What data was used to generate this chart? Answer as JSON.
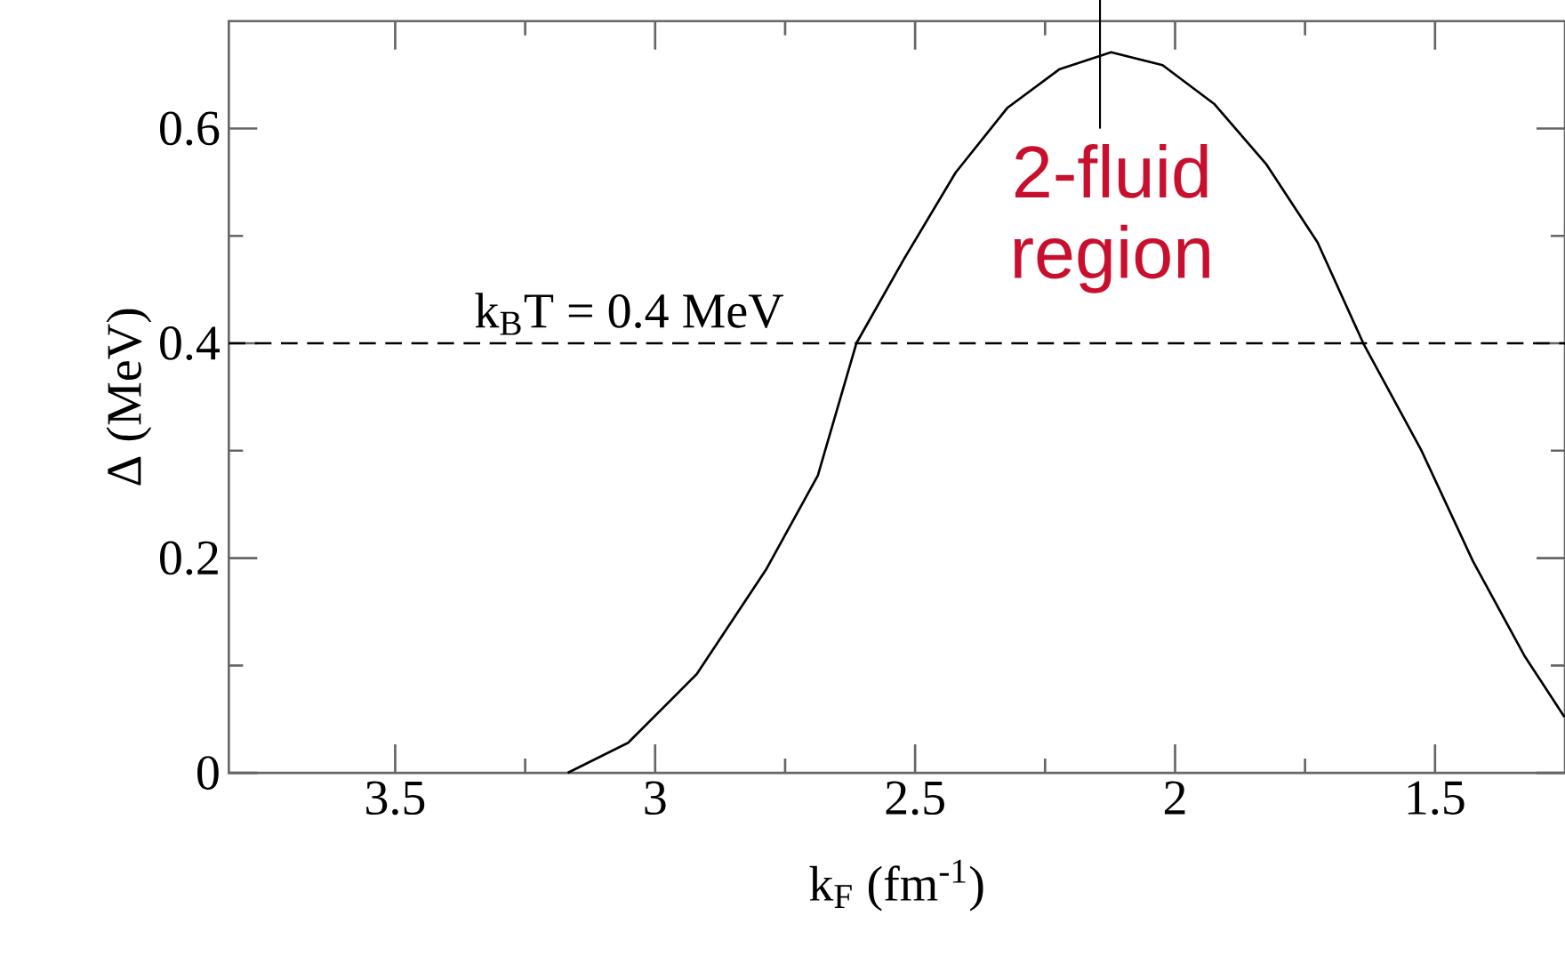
{
  "chart_data": {
    "type": "line",
    "xlabel": "k$_{F}$ (fm$^{-1}$)",
    "ylabel": "Δ (MeV)",
    "x": [
      3.168,
      3.052,
      2.92,
      2.787,
      2.687,
      2.613,
      2.522,
      2.422,
      2.323,
      2.223,
      2.123,
      2.024,
      1.925,
      1.825,
      1.726,
      1.638,
      1.527,
      1.427,
      1.328,
      1.251
    ],
    "series": [
      {
        "color": "#000000",
        "values": [
          0,
          0.028,
          0.092,
          0.189,
          0.277,
          0.4,
          0.478,
          0.559,
          0.619,
          0.655,
          0.671,
          0.659,
          0.623,
          0.567,
          0.494,
          0.4,
          0.301,
          0.197,
          0.109,
          0.052
        ]
      }
    ],
    "xlim": [
      3.82,
      1.25
    ],
    "ylim": [
      0,
      0.7
    ],
    "xticks": [
      3.5,
      3,
      2.5,
      2,
      1.5
    ],
    "yticks": [
      0,
      0.2,
      0.4,
      0.6
    ],
    "ref_lines": [
      {
        "axis": "y",
        "value": 0.4,
        "label": "k$_{B}$T = 0.4 MeV",
        "line_style": "dashed",
        "color": "#000000"
      }
    ],
    "annotations": [
      "2-fluid region"
    ]
  }
}
